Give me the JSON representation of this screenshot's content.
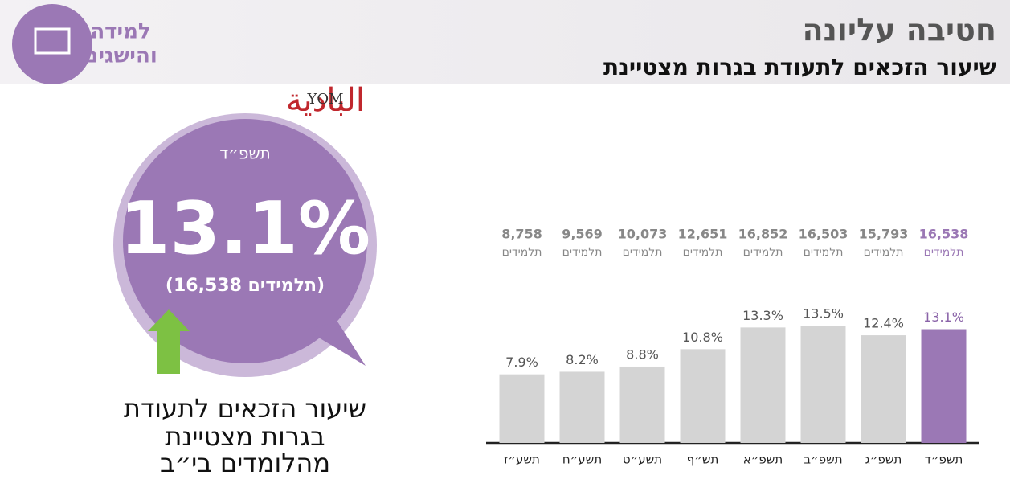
{
  "header": {
    "title": "חטיבה עליונה",
    "subtitle": "שיעור הזכאים לתעודת בגרות מצטיינת",
    "logo_lines": [
      "למידה",
      "והישגים"
    ],
    "watermark": [
      "YOM",
      "البادية"
    ]
  },
  "highlight": {
    "year": "תשפ״ד",
    "value_label": "13.1%",
    "students": "(16,538 תלמידים)",
    "caption": [
      "שיעור הזכאים לתעודת",
      "בגרות מצטיינת",
      "מהלומדים בי״ב"
    ]
  },
  "chart_data": {
    "type": "bar",
    "categories": [
      "תשע״ז",
      "תשע״ח",
      "תשע״ט",
      "תש״ף",
      "תשפ״א",
      "תשפ״ב",
      "תשפ״ג",
      "תשפ״ד"
    ],
    "values": [
      7.9,
      8.2,
      8.8,
      10.8,
      13.3,
      13.5,
      12.4,
      13.1
    ],
    "value_labels": [
      "7.9%",
      "8.2%",
      "8.8%",
      "10.8%",
      "13.3%",
      "13.5%",
      "12.4%",
      "13.1%"
    ],
    "colors": [
      "#d4d4d4",
      "#d4d4d4",
      "#d4d4d4",
      "#d4d4d4",
      "#d4d4d4",
      "#d4d4d4",
      "#d4d4d4",
      "#9b78b5"
    ],
    "students": [
      8758,
      9569,
      10073,
      12651,
      16852,
      16503,
      15793,
      16538
    ],
    "students_labels": [
      "8,758",
      "9,569",
      "10,073",
      "12,651",
      "16,852",
      "16,503",
      "15,793",
      "16,538"
    ],
    "students_unit": "תלמידים",
    "ylim": [
      0,
      15
    ]
  }
}
